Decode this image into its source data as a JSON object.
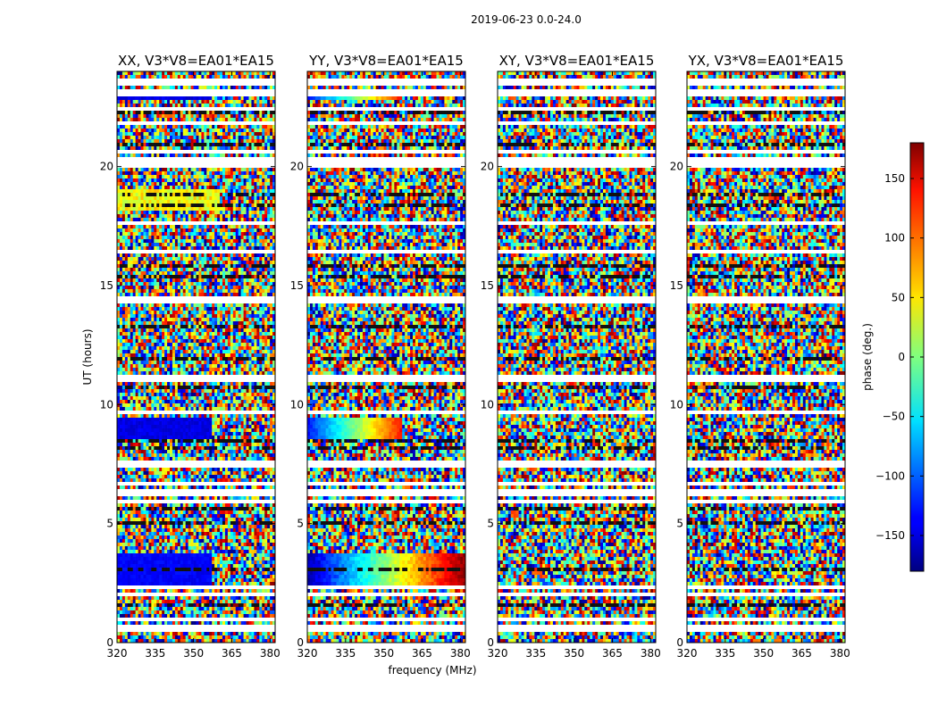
{
  "suptitle": "2019-06-23 0.0-24.0",
  "chart_data": {
    "type": "heatmap",
    "ylabel": "UT (hours)",
    "xlabel": "frequency (MHz)",
    "xlim": [
      320,
      382
    ],
    "ylim": [
      0,
      24
    ],
    "xticks": [
      "320",
      "335",
      "350",
      "365",
      "380"
    ],
    "yticks": [
      "0",
      "5",
      "10",
      "15",
      "20"
    ],
    "colorbar": {
      "label": "phase (deg.)",
      "range": [
        -180,
        180
      ],
      "ticks": [
        "150",
        "100",
        "50",
        "0",
        "−50",
        "−100",
        "−150"
      ],
      "colormap": "jet"
    },
    "panels": [
      {
        "title": "XX, V3*V8=EA01*EA15"
      },
      {
        "title": "YY, V3*V8=EA01*EA15"
      },
      {
        "title": "XY, V3*V8=EA01*EA15"
      },
      {
        "title": "YX, V3*V8=EA01*EA15"
      }
    ]
  }
}
